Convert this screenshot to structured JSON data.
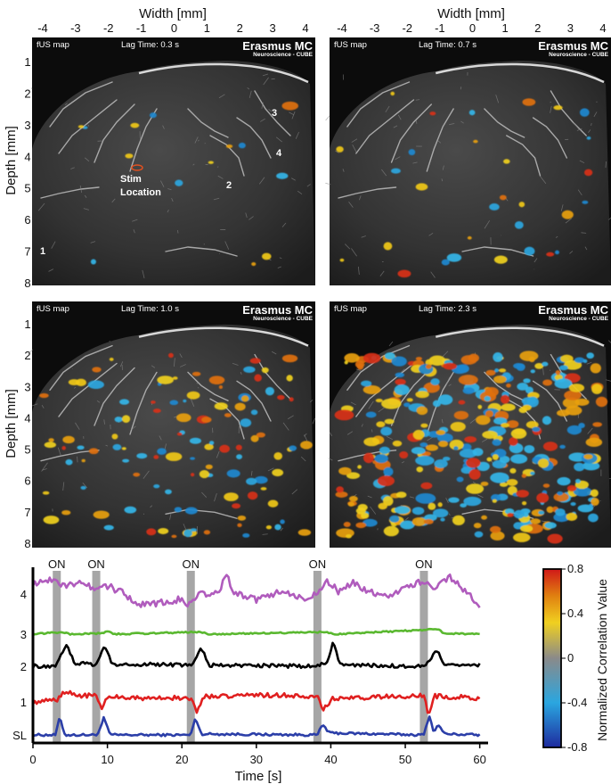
{
  "maps": {
    "width_label": "Width [mm]",
    "depth_label": "Depth [mm]",
    "x_ticks": [
      "-4",
      "-3",
      "-2",
      "-1",
      "0",
      "1",
      "2",
      "3",
      "4"
    ],
    "y_ticks": [
      "1",
      "2",
      "3",
      "4",
      "5",
      "6",
      "7",
      "8"
    ],
    "map_label": "fUS map",
    "brand_title": "Erasmus MC",
    "brand_subtitle": "Neuroscience - CUBE",
    "panels": [
      {
        "lag": "Lag Time:  0.3 s",
        "activity": "sparse"
      },
      {
        "lag": "Lag Time:  0.7 s",
        "activity": "low"
      },
      {
        "lag": "Lag Time:  1.0 s",
        "activity": "medium"
      },
      {
        "lag": "Lag Time:  2.3 s",
        "activity": "high"
      }
    ],
    "annotations": {
      "stim_line1": "Stim",
      "stim_line2": "Location",
      "r1": "1",
      "r2": "2",
      "r3": "3",
      "r4": "4"
    }
  },
  "colorbar": {
    "label": "Normalized Correlation Value",
    "ticks": [
      "0.8",
      "0.4",
      "0",
      "-0.4",
      "-0.8"
    ],
    "range": [
      -0.8,
      0.8
    ],
    "colors": [
      "#1e2a9e",
      "#2aa6e0",
      "#8a8a8a",
      "#f0d020",
      "#e08010",
      "#d01818"
    ]
  },
  "chart_data": {
    "type": "line",
    "xlabel": "Time [s]",
    "ylabel": "",
    "xlim": [
      0,
      61
    ],
    "x_ticks": [
      0,
      10,
      20,
      30,
      40,
      50,
      60
    ],
    "y_tick_labels": [
      "SL",
      "1",
      "2",
      "3",
      "4"
    ],
    "stim_label": "ON",
    "stim_times": [
      3.2,
      8.5,
      21.2,
      38.2,
      52.5
    ],
    "series": [
      {
        "label": "SL",
        "color": "#2b3ea8",
        "keys": [
          [
            0,
            0
          ],
          [
            3,
            0
          ],
          [
            3.6,
            0.9
          ],
          [
            4.3,
            0
          ],
          [
            8.5,
            0
          ],
          [
            9,
            0.3
          ],
          [
            9.5,
            0.85
          ],
          [
            10.4,
            0
          ],
          [
            21.2,
            0
          ],
          [
            21.8,
            0.9
          ],
          [
            22.6,
            0.05
          ],
          [
            38.2,
            0
          ],
          [
            38.9,
            0.55
          ],
          [
            39.8,
            0.1
          ],
          [
            52.5,
            0
          ],
          [
            53.2,
            1.0
          ],
          [
            53.8,
            0.2
          ],
          [
            54.5,
            0.5
          ],
          [
            55.3,
            0.05
          ],
          [
            60,
            0
          ]
        ],
        "noise": 0.12
      },
      {
        "label": "1",
        "color": "#e02020",
        "keys": [
          [
            0,
            0
          ],
          [
            3.2,
            0.1
          ],
          [
            4.3,
            0.55
          ],
          [
            6,
            0.35
          ],
          [
            8.5,
            0.3
          ],
          [
            9.2,
            -0.3
          ],
          [
            10.2,
            0.35
          ],
          [
            12,
            0.2
          ],
          [
            21.2,
            0.2
          ],
          [
            22,
            -0.5
          ],
          [
            23,
            0.3
          ],
          [
            30,
            0.35
          ],
          [
            38.2,
            0.3
          ],
          [
            39,
            -0.4
          ],
          [
            40.2,
            0.2
          ],
          [
            52.5,
            0.3
          ],
          [
            53.1,
            -0.65
          ],
          [
            54,
            0.3
          ],
          [
            60,
            0.2
          ]
        ],
        "noise": 0.24
      },
      {
        "label": "2",
        "color": "#000000",
        "keys": [
          [
            0,
            0
          ],
          [
            3,
            0
          ],
          [
            4.5,
            0.9
          ],
          [
            5.6,
            0.1
          ],
          [
            6.5,
            0.15
          ],
          [
            8.5,
            0.05
          ],
          [
            9.6,
            0.85
          ],
          [
            10.6,
            0.1
          ],
          [
            21.2,
            0.05
          ],
          [
            22.6,
            0.75
          ],
          [
            23.7,
            0.05
          ],
          [
            38.2,
            0
          ],
          [
            39.5,
            0.2
          ],
          [
            40.3,
            1.05
          ],
          [
            41.3,
            0.05
          ],
          [
            52.5,
            0
          ],
          [
            54.3,
            0.7
          ],
          [
            55.3,
            0.05
          ],
          [
            60,
            0.05
          ]
        ],
        "noise": 0.16
      },
      {
        "label": "3",
        "color": "#5ab830",
        "keys": [
          [
            0,
            0
          ],
          [
            4,
            0.15
          ],
          [
            5,
            0
          ],
          [
            9,
            0.05
          ],
          [
            10,
            0.2
          ],
          [
            11,
            0
          ],
          [
            22.5,
            0.15
          ],
          [
            23.5,
            0
          ],
          [
            39.5,
            0.15
          ],
          [
            40.5,
            0
          ],
          [
            54.5,
            0.35
          ],
          [
            55.2,
            0.05
          ],
          [
            60,
            0
          ]
        ],
        "noise": 0.1
      },
      {
        "label": "4",
        "color": "#b05cbd",
        "keys": [
          [
            0,
            0.45
          ],
          [
            3,
            0.6
          ],
          [
            4,
            0.35
          ],
          [
            6,
            0.45
          ],
          [
            8.5,
            0.25
          ],
          [
            9.5,
            0.4
          ],
          [
            12,
            0.05
          ],
          [
            14,
            -0.45
          ],
          [
            17,
            -0.35
          ],
          [
            20,
            -0.2
          ],
          [
            21,
            -0.45
          ],
          [
            22,
            -0.05
          ],
          [
            25,
            0.05
          ],
          [
            26,
            0.8
          ],
          [
            27,
            0.05
          ],
          [
            30,
            -0.25
          ],
          [
            33,
            0.1
          ],
          [
            37,
            -0.25
          ],
          [
            38.5,
            0.15
          ],
          [
            39.5,
            0.55
          ],
          [
            41,
            0.1
          ],
          [
            43,
            0.45
          ],
          [
            45,
            0.1
          ],
          [
            47,
            -0.1
          ],
          [
            50,
            0.2
          ],
          [
            52,
            0.5
          ],
          [
            54,
            0.2
          ],
          [
            56,
            0.65
          ],
          [
            58,
            0.15
          ],
          [
            60,
            -0.45
          ]
        ],
        "noise": 0.26
      }
    ]
  }
}
